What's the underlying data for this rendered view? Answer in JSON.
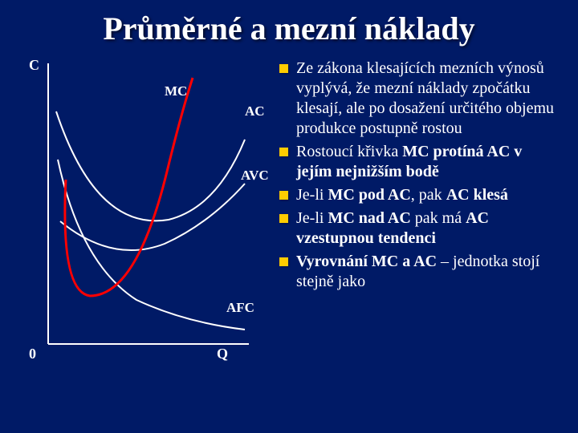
{
  "colors": {
    "background": "#001a66",
    "title_text": "#ffffff",
    "body_text": "#ffffff",
    "bullet_marker": "#ffcc00",
    "axis": "#ffffff",
    "curve_mc": "#ff0000",
    "curve_ac": "#ffffff",
    "curve_avc": "#ffffff",
    "curve_afc": "#ffffff"
  },
  "title": "Průměrné a mezní náklady",
  "chart": {
    "y_axis_label": "C",
    "x_axis_label": "Q",
    "origin_label": "0",
    "curves": {
      "mc": {
        "label": "MC",
        "stroke_width": 3
      },
      "ac": {
        "label": "AC",
        "stroke_width": 2
      },
      "avc": {
        "label": "AVC",
        "stroke_width": 2
      },
      "afc": {
        "label": "AFC",
        "stroke_width": 2
      }
    }
  },
  "bullets": [
    "Ze zákona klesajících mezních výnosů vyplývá, že mezní náklady zpočátku klesají, ale po dosažení určitého objemu produkce postupně rostou",
    "Rostoucí křivka <b>MC protíná AC v jejím nejnižším bodě</b>",
    "Je-li <b>MC pod AC</b>, pak <b>AC klesá</b>",
    "Je-li <b>MC nad AC</b> pak má <b>AC vzestupnou tendenci</b>",
    "<b>Vyrovnání MC a AC</b> – jednotka stojí stejně jako"
  ]
}
